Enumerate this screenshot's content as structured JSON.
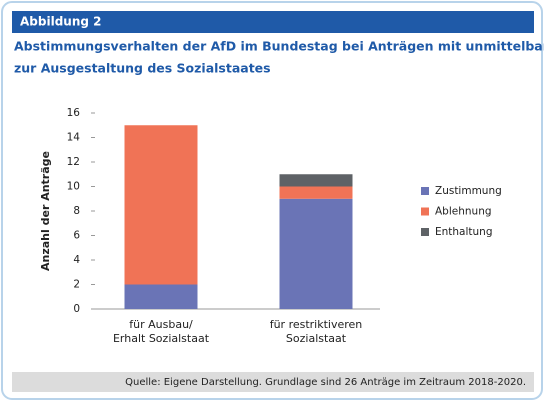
{
  "header": "Abbildung 2",
  "chart_data": {
    "type": "stacked-bar",
    "title": [
      "Abstimmungsverhalten der AfD im Bundestag bei Anträgen mit unmittelbarem Bezug",
      "zur Ausgestaltung des Sozialstaates"
    ],
    "ylabel": "Anzahl der Anträge",
    "categories": [
      [
        "für Ausbau/",
        "Erhalt Sozialstaat"
      ],
      [
        "für restriktiveren",
        "Sozialstaat"
      ]
    ],
    "series": [
      {
        "name": "Zustimmung",
        "color": "#6a74b6",
        "values": [
          2,
          9
        ]
      },
      {
        "name": "Ablehnung",
        "color": "#f07356",
        "values": [
          13,
          1
        ]
      },
      {
        "name": "Enthaltung",
        "color": "#5e6266",
        "values": [
          0,
          1
        ]
      }
    ],
    "ylim": [
      0,
      16
    ],
    "yticks": [
      0,
      2,
      4,
      6,
      8,
      10,
      12,
      14,
      16
    ],
    "legend": "right"
  },
  "source": "Quelle: Eigene Darstellung. Grundlage sind 26 Anträge im Zeitraum 2018-2020."
}
